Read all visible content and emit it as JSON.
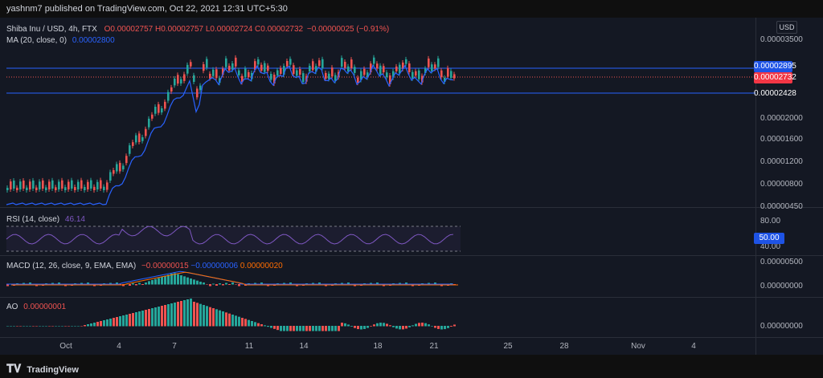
{
  "header": {
    "published": "yashnm7 published on TradingView.com, Oct 22, 2021 12:31 UTC+5:30"
  },
  "main_chart": {
    "symbol": "Shiba Inu / USD, 4h, FTX",
    "ohlc": {
      "o": "O0.00002757",
      "h": "H0.00002757",
      "l": "L0.00002724",
      "c": "C0.00002732",
      "chg": "−0.00000025 (−0.91%)"
    },
    "ma_label": "MA (20, close, 0)",
    "ma_value": "0.00002800",
    "currency": "USD",
    "y_ticks": [
      "0.00003500",
      "0.00002000",
      "0.00001600",
      "0.00001200",
      "0.00000800",
      "0.00000450"
    ],
    "price_tags": [
      {
        "value": "0.00002895",
        "color": "#1e53e5"
      },
      {
        "value": "0.00002732",
        "color": "#f23645"
      },
      {
        "value": "0.00002428",
        "color": "#1e53e5"
      }
    ]
  },
  "rsi": {
    "label": "RSI (14, close)",
    "value": "46.14",
    "ticks": [
      "80.00",
      "40.00"
    ],
    "tag": "50.00"
  },
  "macd": {
    "label": "MACD (12, 26, close, 9, EMA, EMA)",
    "v1": "−0.00000015",
    "v2": "−0.00000006",
    "v3": "0.00000020",
    "ticks": [
      "0.00000500",
      "0.00000000"
    ]
  },
  "ao": {
    "label": "AO",
    "value": "0.00000001",
    "tick": "0.00000000"
  },
  "x_ticks": [
    "Oct",
    "4",
    "7",
    "11",
    "14",
    "18",
    "21",
    "25",
    "28",
    "Nov",
    "4"
  ],
  "footer": {
    "brand": "TradingView"
  },
  "colors": {
    "up": "#26a69a",
    "down": "#ef5350",
    "ma": "#2962ff",
    "rsi": "#7e57c2",
    "macd_signal": "#ff6d00"
  }
}
